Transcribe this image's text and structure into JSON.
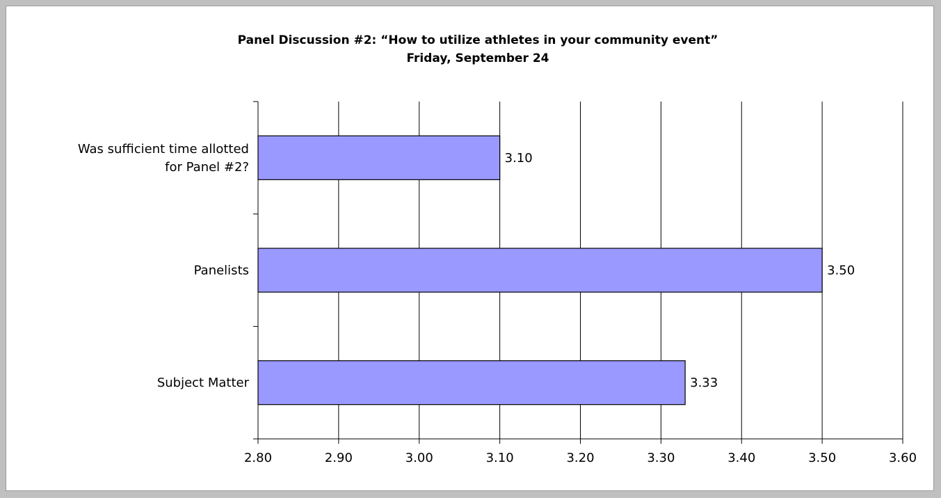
{
  "chart_data": {
    "type": "bar",
    "orientation": "horizontal",
    "title": "Panel Discussion #2: “How to utilize athletes in your community event”",
    "subtitle": "Friday, September 24",
    "categories": [
      "Was sufficient time allotted for Panel #2?",
      "Panelists",
      "Subject Matter"
    ],
    "category_lines": [
      [
        "Was sufficient time allotted",
        "for Panel #2?"
      ],
      [
        "Panelists"
      ],
      [
        "Subject Matter"
      ]
    ],
    "values": [
      3.1,
      3.5,
      3.33
    ],
    "data_labels": [
      "3.10",
      "3.50",
      "3.33"
    ],
    "xlim": [
      2.8,
      3.6
    ],
    "xticks": [
      2.8,
      2.9,
      3.0,
      3.1,
      3.2,
      3.3,
      3.4,
      3.5,
      3.6
    ],
    "xtick_labels": [
      "2.80",
      "2.90",
      "3.00",
      "3.10",
      "3.20",
      "3.30",
      "3.40",
      "3.50",
      "3.60"
    ],
    "xlabel": "",
    "ylabel": "",
    "grid": "vertical",
    "legend": "none",
    "bar_color": "#9999ff",
    "bar_edge_color": "#000000"
  }
}
